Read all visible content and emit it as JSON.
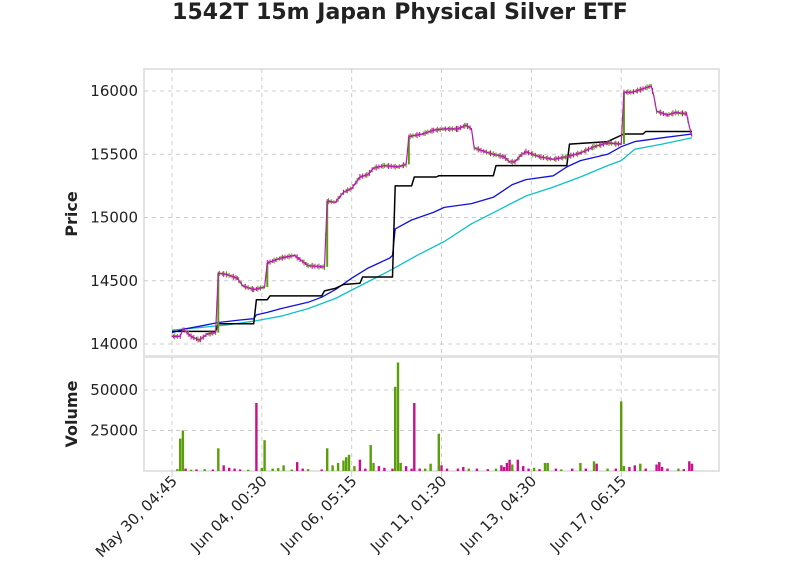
{
  "chart_data": {
    "type": "candlestick",
    "title": "1542T 15m Japan Physical Silver ETF",
    "x_tick_labels": [
      "May 30, 04:45",
      "Jun 04, 00:30",
      "Jun 06, 05:15",
      "Jun 11, 01:30",
      "Jun 13, 04:30",
      "Jun 17, 06:15"
    ],
    "grid": true,
    "colors": {
      "up": "#5a9e0a",
      "down": "#c8108c",
      "price_line": "#b51ab5",
      "ma_blue": "#1010e0",
      "ma_cyan": "#10c0c8",
      "step_black": "#000000"
    },
    "price_panel": {
      "ylabel": "Price",
      "ylim": [
        13950,
        16200
      ],
      "yticks": [
        14000,
        14500,
        15000,
        15500,
        16000
      ],
      "close_path": [
        [
          0,
          14060
        ],
        [
          3,
          14060
        ],
        [
          4,
          14120
        ],
        [
          7,
          14060
        ],
        [
          10,
          14030
        ],
        [
          13,
          14080
        ],
        [
          16,
          14090
        ],
        [
          17,
          14560
        ],
        [
          20,
          14550
        ],
        [
          24,
          14520
        ],
        [
          26,
          14460
        ],
        [
          30,
          14430
        ],
        [
          34,
          14450
        ],
        [
          35,
          14640
        ],
        [
          40,
          14680
        ],
        [
          45,
          14700
        ],
        [
          50,
          14620
        ],
        [
          55,
          14610
        ],
        [
          56,
          14610
        ],
        [
          57,
          15130
        ],
        [
          60,
          15120
        ],
        [
          63,
          15200
        ],
        [
          66,
          15230
        ],
        [
          69,
          15320
        ],
        [
          72,
          15340
        ],
        [
          74,
          15390
        ],
        [
          78,
          15410
        ],
        [
          83,
          15400
        ],
        [
          86,
          15420
        ],
        [
          87,
          15640
        ],
        [
          92,
          15660
        ],
        [
          96,
          15690
        ],
        [
          100,
          15700
        ],
        [
          105,
          15700
        ],
        [
          108,
          15730
        ],
        [
          110,
          15700
        ],
        [
          111,
          15550
        ],
        [
          115,
          15520
        ],
        [
          118,
          15500
        ],
        [
          122,
          15480
        ],
        [
          124,
          15440
        ],
        [
          126,
          15440
        ],
        [
          128,
          15490
        ],
        [
          130,
          15520
        ],
        [
          135,
          15480
        ],
        [
          140,
          15460
        ],
        [
          145,
          15480
        ],
        [
          150,
          15510
        ],
        [
          155,
          15560
        ],
        [
          160,
          15590
        ],
        [
          165,
          15580
        ],
        [
          166,
          15990
        ],
        [
          169,
          15990
        ],
        [
          172,
          16010
        ],
        [
          176,
          16040
        ],
        [
          177,
          15960
        ],
        [
          178,
          15840
        ],
        [
          182,
          15810
        ],
        [
          185,
          15830
        ],
        [
          189,
          15820
        ],
        [
          190,
          15720
        ],
        [
          191,
          15640
        ]
      ],
      "step_line": [
        [
          0,
          14100
        ],
        [
          16,
          14100
        ],
        [
          17,
          14160
        ],
        [
          30,
          14160
        ],
        [
          31,
          14350
        ],
        [
          35,
          14350
        ],
        [
          36,
          14380
        ],
        [
          55,
          14380
        ],
        [
          56,
          14420
        ],
        [
          60,
          14440
        ],
        [
          63,
          14470
        ],
        [
          69,
          14480
        ],
        [
          70,
          14530
        ],
        [
          81,
          14530
        ],
        [
          82,
          15250
        ],
        [
          88,
          15250
        ],
        [
          89,
          15320
        ],
        [
          97,
          15320
        ],
        [
          98,
          15330
        ],
        [
          118,
          15330
        ],
        [
          119,
          15410
        ],
        [
          145,
          15410
        ],
        [
          146,
          15580
        ],
        [
          160,
          15600
        ],
        [
          166,
          15660
        ],
        [
          173,
          15660
        ],
        [
          174,
          15680
        ],
        [
          191,
          15680
        ]
      ],
      "ma_blue": [
        [
          0,
          14090
        ],
        [
          5,
          14120
        ],
        [
          10,
          14140
        ],
        [
          17,
          14170
        ],
        [
          25,
          14190
        ],
        [
          30,
          14200
        ],
        [
          31,
          14230
        ],
        [
          35,
          14250
        ],
        [
          40,
          14280
        ],
        [
          50,
          14330
        ],
        [
          55,
          14370
        ],
        [
          60,
          14430
        ],
        [
          66,
          14520
        ],
        [
          72,
          14600
        ],
        [
          80,
          14680
        ],
        [
          81,
          14700
        ],
        [
          82,
          14910
        ],
        [
          88,
          14980
        ],
        [
          96,
          15040
        ],
        [
          100,
          15080
        ],
        [
          110,
          15110
        ],
        [
          118,
          15160
        ],
        [
          125,
          15260
        ],
        [
          130,
          15300
        ],
        [
          140,
          15330
        ],
        [
          145,
          15400
        ],
        [
          150,
          15450
        ],
        [
          160,
          15500
        ],
        [
          165,
          15560
        ],
        [
          170,
          15600
        ],
        [
          180,
          15630
        ],
        [
          191,
          15660
        ]
      ],
      "ma_cyan": [
        [
          0,
          14110
        ],
        [
          10,
          14130
        ],
        [
          20,
          14150
        ],
        [
          30,
          14180
        ],
        [
          40,
          14220
        ],
        [
          50,
          14280
        ],
        [
          60,
          14360
        ],
        [
          70,
          14470
        ],
        [
          80,
          14580
        ],
        [
          90,
          14700
        ],
        [
          100,
          14810
        ],
        [
          110,
          14950
        ],
        [
          120,
          15060
        ],
        [
          130,
          15170
        ],
        [
          140,
          15240
        ],
        [
          150,
          15320
        ],
        [
          160,
          15410
        ],
        [
          165,
          15450
        ],
        [
          170,
          15540
        ],
        [
          180,
          15580
        ],
        [
          191,
          15630
        ]
      ]
    },
    "volume_panel": {
      "ylabel": "Volume",
      "ylim": [
        0,
        70000
      ],
      "yticks": [
        25000,
        50000
      ],
      "yticklabels": [
        "25000",
        "50000"
      ],
      "bars": [
        [
          2,
          1200,
          "up"
        ],
        [
          3,
          20000,
          "up"
        ],
        [
          4,
          25000,
          "up"
        ],
        [
          5,
          1500,
          "down"
        ],
        [
          7,
          800,
          "up"
        ],
        [
          9,
          1000,
          "down"
        ],
        [
          12,
          1200,
          "up"
        ],
        [
          15,
          900,
          "down"
        ],
        [
          17,
          14000,
          "up"
        ],
        [
          19,
          3500,
          "down"
        ],
        [
          21,
          2000,
          "down"
        ],
        [
          23,
          1500,
          "down"
        ],
        [
          25,
          1000,
          "down"
        ],
        [
          28,
          800,
          "up"
        ],
        [
          31,
          42000,
          "down"
        ],
        [
          33,
          2000,
          "up"
        ],
        [
          34,
          19000,
          "up"
        ],
        [
          37,
          1500,
          "up"
        ],
        [
          39,
          1800,
          "up"
        ],
        [
          41,
          3500,
          "up"
        ],
        [
          44,
          900,
          "up"
        ],
        [
          46,
          5500,
          "down"
        ],
        [
          48,
          1500,
          "down"
        ],
        [
          50,
          1200,
          "up"
        ],
        [
          55,
          1000,
          "down"
        ],
        [
          57,
          14000,
          "up"
        ],
        [
          59,
          3500,
          "up"
        ],
        [
          61,
          5000,
          "up"
        ],
        [
          63,
          6500,
          "up"
        ],
        [
          64,
          8500,
          "up"
        ],
        [
          65,
          10000,
          "up"
        ],
        [
          67,
          3000,
          "up"
        ],
        [
          69,
          7000,
          "down"
        ],
        [
          71,
          1500,
          "down"
        ],
        [
          73,
          16000,
          "up"
        ],
        [
          74,
          5000,
          "up"
        ],
        [
          76,
          3000,
          "down"
        ],
        [
          78,
          2000,
          "down"
        ],
        [
          81,
          1500,
          "down"
        ],
        [
          82,
          52000,
          "up"
        ],
        [
          83,
          67000,
          "up"
        ],
        [
          84,
          5000,
          "up"
        ],
        [
          86,
          3000,
          "down"
        ],
        [
          88,
          1500,
          "down"
        ],
        [
          89,
          42000,
          "down"
        ],
        [
          91,
          1500,
          "down"
        ],
        [
          93,
          1500,
          "up"
        ],
        [
          95,
          4500,
          "up"
        ],
        [
          98,
          23000,
          "up"
        ],
        [
          99,
          3500,
          "down"
        ],
        [
          101,
          1500,
          "down"
        ],
        [
          105,
          1500,
          "down"
        ],
        [
          107,
          2500,
          "down"
        ],
        [
          109,
          1500,
          "up"
        ],
        [
          112,
          1500,
          "down"
        ],
        [
          116,
          1200,
          "down"
        ],
        [
          119,
          1500,
          "up"
        ],
        [
          121,
          3500,
          "down"
        ],
        [
          122,
          2500,
          "down"
        ],
        [
          123,
          5000,
          "down"
        ],
        [
          124,
          7000,
          "down"
        ],
        [
          125,
          4000,
          "up"
        ],
        [
          127,
          7000,
          "down"
        ],
        [
          129,
          3000,
          "down"
        ],
        [
          131,
          1500,
          "down"
        ],
        [
          133,
          2000,
          "up"
        ],
        [
          135,
          1200,
          "down"
        ],
        [
          137,
          5000,
          "up"
        ],
        [
          138,
          5000,
          "up"
        ],
        [
          141,
          1500,
          "down"
        ],
        [
          143,
          1000,
          "up"
        ],
        [
          147,
          1500,
          "down"
        ],
        [
          150,
          5000,
          "up"
        ],
        [
          152,
          1500,
          "down"
        ],
        [
          155,
          6000,
          "up"
        ],
        [
          156,
          4500,
          "down"
        ],
        [
          160,
          1500,
          "up"
        ],
        [
          163,
          1500,
          "down"
        ],
        [
          165,
          43000,
          "up"
        ],
        [
          166,
          3000,
          "up"
        ],
        [
          168,
          2500,
          "down"
        ],
        [
          170,
          3500,
          "down"
        ],
        [
          172,
          4500,
          "up"
        ],
        [
          174,
          1500,
          "down"
        ],
        [
          178,
          4000,
          "down"
        ],
        [
          179,
          5500,
          "down"
        ],
        [
          180,
          2500,
          "down"
        ],
        [
          182,
          1500,
          "down"
        ],
        [
          186,
          1500,
          "up"
        ],
        [
          188,
          1200,
          "down"
        ],
        [
          190,
          6000,
          "down"
        ],
        [
          191,
          4500,
          "down"
        ]
      ]
    }
  }
}
